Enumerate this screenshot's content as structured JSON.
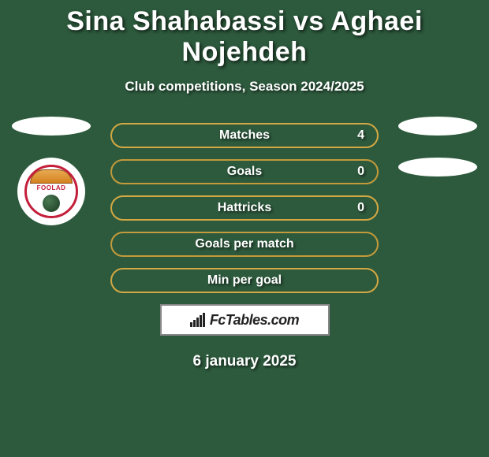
{
  "title": "Sina Shahabassi vs Aghaei Nojehdeh",
  "subtitle": "Club competitions, Season 2024/2025",
  "date": "6 january 2025",
  "brand": "FcTables.com",
  "colors": {
    "background": "#2d5a3d",
    "stat_border": "#d4a843",
    "stat_border_alt": "#c49a3a",
    "text": "#ffffff",
    "badge_red": "#c41e3a"
  },
  "club_badge": {
    "label": "FOOLAD"
  },
  "stats": [
    {
      "label": "Matches",
      "value": "4",
      "show_value": true
    },
    {
      "label": "Goals",
      "value": "0",
      "show_value": true
    },
    {
      "label": "Hattricks",
      "value": "0",
      "show_value": true
    },
    {
      "label": "Goals per match",
      "value": "",
      "show_value": false
    },
    {
      "label": "Min per goal",
      "value": "",
      "show_value": false
    }
  ],
  "right_ovals_count": 2,
  "brand_bars": [
    6,
    9,
    12,
    15,
    18
  ]
}
